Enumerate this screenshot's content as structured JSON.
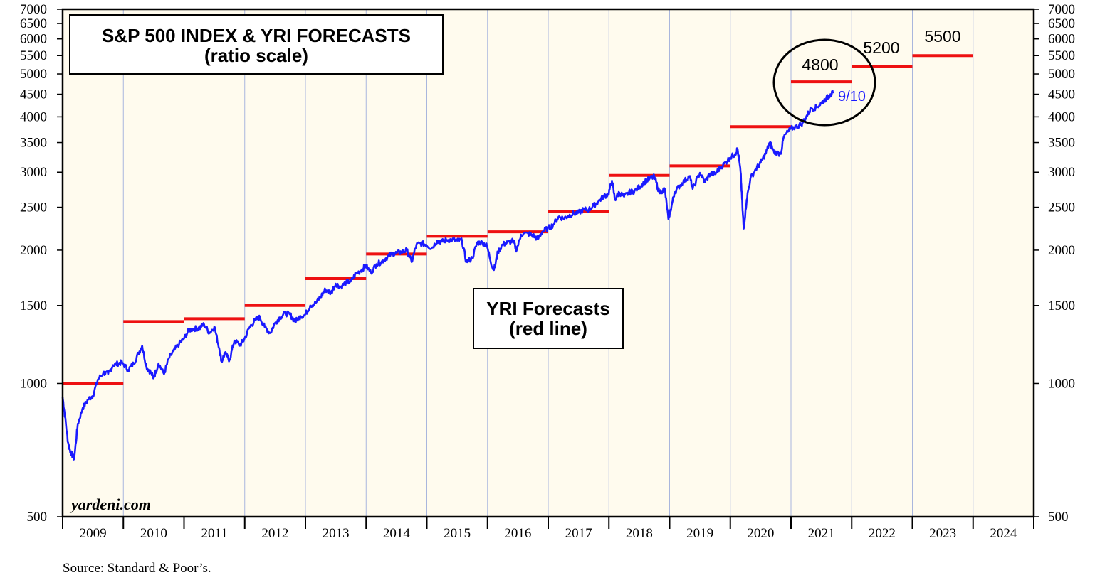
{
  "chart_data": {
    "type": "line",
    "title": "S&P 500 INDEX & YRI FORECASTS",
    "subtitle": "(ratio scale)",
    "scale": "log",
    "ylim": [
      500,
      7000
    ],
    "y_ticks": [
      500,
      1000,
      1500,
      2000,
      2500,
      3000,
      3500,
      4000,
      4500,
      5000,
      5500,
      6000,
      6500,
      7000
    ],
    "y_tick_labels": [
      "500",
      "1000",
      "1500",
      "2000",
      "2500",
      "3000",
      "3500",
      "4000",
      "4500",
      "5000",
      "5500",
      "6000",
      "6500",
      "7000"
    ],
    "x_categories": [
      "2009",
      "2010",
      "2011",
      "2012",
      "2013",
      "2014",
      "2015",
      "2016",
      "2017",
      "2018",
      "2019",
      "2020",
      "2021",
      "2022",
      "2023",
      "2024"
    ],
    "xlim": [
      2009.0,
      2025.0
    ],
    "series": [
      {
        "name": "S&P 500 Index",
        "color": "#1a1aff",
        "points": [
          [
            2009.0,
            931
          ],
          [
            2009.04,
            840
          ],
          [
            2009.09,
            735
          ],
          [
            2009.13,
            700
          ],
          [
            2009.19,
            676
          ],
          [
            2009.25,
            811
          ],
          [
            2009.33,
            880
          ],
          [
            2009.42,
            920
          ],
          [
            2009.5,
            940
          ],
          [
            2009.58,
            1020
          ],
          [
            2009.67,
            1057
          ],
          [
            2009.75,
            1050
          ],
          [
            2009.83,
            1100
          ],
          [
            2009.92,
            1110
          ],
          [
            2009.98,
            1115
          ],
          [
            2010.08,
            1073
          ],
          [
            2010.17,
            1110
          ],
          [
            2010.25,
            1170
          ],
          [
            2010.31,
            1217
          ],
          [
            2010.38,
            1090
          ],
          [
            2010.45,
            1060
          ],
          [
            2010.5,
            1030
          ],
          [
            2010.58,
            1110
          ],
          [
            2010.67,
            1050
          ],
          [
            2010.75,
            1140
          ],
          [
            2010.83,
            1185
          ],
          [
            2010.92,
            1230
          ],
          [
            2010.99,
            1258
          ],
          [
            2011.08,
            1320
          ],
          [
            2011.17,
            1330
          ],
          [
            2011.25,
            1333
          ],
          [
            2011.33,
            1360
          ],
          [
            2011.42,
            1300
          ],
          [
            2011.5,
            1345
          ],
          [
            2011.58,
            1200
          ],
          [
            2011.62,
            1120
          ],
          [
            2011.67,
            1170
          ],
          [
            2011.75,
            1130
          ],
          [
            2011.83,
            1250
          ],
          [
            2011.92,
            1220
          ],
          [
            2011.99,
            1257
          ],
          [
            2012.08,
            1340
          ],
          [
            2012.17,
            1390
          ],
          [
            2012.25,
            1410
          ],
          [
            2012.33,
            1340
          ],
          [
            2012.42,
            1300
          ],
          [
            2012.5,
            1370
          ],
          [
            2012.58,
            1410
          ],
          [
            2012.67,
            1440
          ],
          [
            2012.75,
            1430
          ],
          [
            2012.83,
            1380
          ],
          [
            2012.92,
            1420
          ],
          [
            2012.99,
            1426
          ],
          [
            2013.08,
            1500
          ],
          [
            2013.17,
            1520
          ],
          [
            2013.25,
            1570
          ],
          [
            2013.33,
            1630
          ],
          [
            2013.42,
            1600
          ],
          [
            2013.5,
            1680
          ],
          [
            2013.58,
            1650
          ],
          [
            2013.67,
            1690
          ],
          [
            2013.75,
            1700
          ],
          [
            2013.83,
            1770
          ],
          [
            2013.92,
            1800
          ],
          [
            2013.99,
            1848
          ],
          [
            2014.08,
            1780
          ],
          [
            2014.17,
            1860
          ],
          [
            2014.25,
            1880
          ],
          [
            2014.33,
            1920
          ],
          [
            2014.42,
            1960
          ],
          [
            2014.5,
            1970
          ],
          [
            2014.58,
            1980
          ],
          [
            2014.67,
            2000
          ],
          [
            2014.75,
            1880
          ],
          [
            2014.83,
            2060
          ],
          [
            2014.92,
            2070
          ],
          [
            2014.99,
            2059
          ],
          [
            2015.08,
            2020
          ],
          [
            2015.17,
            2100
          ],
          [
            2015.25,
            2090
          ],
          [
            2015.33,
            2110
          ],
          [
            2015.42,
            2110
          ],
          [
            2015.5,
            2100
          ],
          [
            2015.58,
            2100
          ],
          [
            2015.65,
            1880
          ],
          [
            2015.75,
            1920
          ],
          [
            2015.83,
            2080
          ],
          [
            2015.92,
            2080
          ],
          [
            2015.99,
            2044
          ],
          [
            2016.08,
            1830
          ],
          [
            2016.12,
            1829
          ],
          [
            2016.17,
            1980
          ],
          [
            2016.25,
            2060
          ],
          [
            2016.33,
            2080
          ],
          [
            2016.42,
            2100
          ],
          [
            2016.48,
            2000
          ],
          [
            2016.55,
            2170
          ],
          [
            2016.67,
            2180
          ],
          [
            2016.75,
            2160
          ],
          [
            2016.83,
            2120
          ],
          [
            2016.9,
            2200
          ],
          [
            2016.99,
            2239
          ],
          [
            2017.08,
            2280
          ],
          [
            2017.17,
            2380
          ],
          [
            2017.25,
            2360
          ],
          [
            2017.33,
            2390
          ],
          [
            2017.42,
            2420
          ],
          [
            2017.5,
            2430
          ],
          [
            2017.58,
            2470
          ],
          [
            2017.67,
            2470
          ],
          [
            2017.75,
            2520
          ],
          [
            2017.83,
            2580
          ],
          [
            2017.92,
            2650
          ],
          [
            2017.99,
            2674
          ],
          [
            2018.05,
            2870
          ],
          [
            2018.1,
            2600
          ],
          [
            2018.17,
            2700
          ],
          [
            2018.25,
            2640
          ],
          [
            2018.33,
            2700
          ],
          [
            2018.42,
            2720
          ],
          [
            2018.5,
            2780
          ],
          [
            2018.58,
            2850
          ],
          [
            2018.67,
            2900
          ],
          [
            2018.75,
            2930
          ],
          [
            2018.83,
            2700
          ],
          [
            2018.92,
            2750
          ],
          [
            2018.98,
            2351
          ],
          [
            2019.03,
            2510
          ],
          [
            2019.08,
            2700
          ],
          [
            2019.17,
            2800
          ],
          [
            2019.25,
            2870
          ],
          [
            2019.33,
            2940
          ],
          [
            2019.38,
            2750
          ],
          [
            2019.5,
            2990
          ],
          [
            2019.58,
            2850
          ],
          [
            2019.67,
            2980
          ],
          [
            2019.75,
            2970
          ],
          [
            2019.83,
            3070
          ],
          [
            2019.92,
            3150
          ],
          [
            2019.99,
            3230
          ],
          [
            2020.08,
            3300
          ],
          [
            2020.12,
            3386
          ],
          [
            2020.17,
            3000
          ],
          [
            2020.2,
            2500
          ],
          [
            2020.22,
            2237
          ],
          [
            2020.27,
            2600
          ],
          [
            2020.33,
            2900
          ],
          [
            2020.42,
            3050
          ],
          [
            2020.5,
            3150
          ],
          [
            2020.58,
            3300
          ],
          [
            2020.65,
            3500
          ],
          [
            2020.72,
            3330
          ],
          [
            2020.83,
            3300
          ],
          [
            2020.88,
            3600
          ],
          [
            2020.99,
            3756
          ],
          [
            2021.08,
            3800
          ],
          [
            2021.17,
            3850
          ],
          [
            2021.25,
            4000
          ],
          [
            2021.33,
            4180
          ],
          [
            2021.42,
            4200
          ],
          [
            2021.5,
            4300
          ],
          [
            2021.58,
            4400
          ],
          [
            2021.65,
            4500
          ],
          [
            2021.69,
            4520
          ]
        ]
      },
      {
        "name": "YRI Forecasts",
        "color": "#ee1111",
        "segments": [
          {
            "year": 2009,
            "value": 1000
          },
          {
            "year": 2010,
            "value": 1380
          },
          {
            "year": 2011,
            "value": 1400
          },
          {
            "year": 2012,
            "value": 1500
          },
          {
            "year": 2013,
            "value": 1725
          },
          {
            "year": 2014,
            "value": 1960
          },
          {
            "year": 2015,
            "value": 2150
          },
          {
            "year": 2016,
            "value": 2200
          },
          {
            "year": 2017,
            "value": 2450
          },
          {
            "year": 2018,
            "value": 2950
          },
          {
            "year": 2019,
            "value": 3100
          },
          {
            "year": 2020,
            "value": 3800
          },
          {
            "year": 2021,
            "value": 4800
          },
          {
            "year": 2022,
            "value": 5200
          },
          {
            "year": 2023,
            "value": 5500
          }
        ]
      }
    ],
    "annotations": {
      "forecast_labels": [
        {
          "text": "4800",
          "year": 2021,
          "value": 4800
        },
        {
          "text": "5200",
          "year": 2022,
          "value": 5200
        },
        {
          "text": "5500",
          "year": 2023,
          "value": 5500
        }
      ],
      "last_date_label": "9/10",
      "legend_box_line1": "YRI Forecasts",
      "legend_box_line2": "(red line)",
      "watermark": "yardeni.com",
      "source": "Source: Standard & Poor’s."
    },
    "colors": {
      "plot_bg": "#fffbee",
      "grid": "#a9b6dd",
      "index_line": "#1a1aff",
      "forecast_line": "#ee1111"
    }
  }
}
